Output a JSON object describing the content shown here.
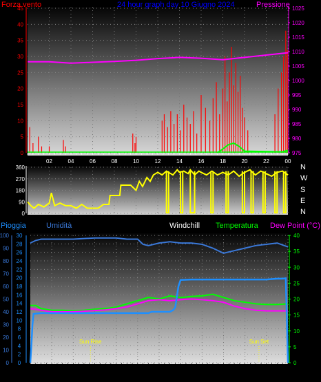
{
  "chart_data": [
    {
      "type": "bar",
      "title": "24 hour graph day 10 Giugno 2024",
      "left_label": "Forza vento",
      "right_label": "Pressione",
      "ylim_left": [
        0,
        45
      ],
      "ylim_right": [
        975,
        1025
      ],
      "yticks_left": [
        "0",
        "5",
        "10",
        "15",
        "20",
        "25",
        "30",
        "35",
        "40",
        "45"
      ],
      "yticks_right": [
        "975",
        "980",
        "985",
        "990",
        "995",
        "1000",
        "1005",
        "1010",
        "1015",
        "1020",
        "1025"
      ],
      "xticks": [
        "02",
        "04",
        "06",
        "08",
        "10",
        "12",
        "14",
        "16",
        "18",
        "20",
        "22",
        "00"
      ],
      "colors": {
        "wind": "#ff0000",
        "pressure": "#ff00ff",
        "gust": "#00ff00",
        "title": "#0000ff"
      },
      "series": [
        {
          "key": "pressure",
          "x": [
            0,
            2,
            4,
            6,
            8,
            10,
            12,
            14,
            16,
            18,
            20,
            22,
            24
          ],
          "values": [
            1006.5,
            1006.5,
            1006,
            1006.3,
            1006.6,
            1007,
            1007.6,
            1008,
            1007.7,
            1007.2,
            1008,
            1008.8,
            1009.6
          ]
        },
        {
          "key": "gust",
          "x": [
            17.5,
            18,
            18.5,
            19,
            19.5,
            20,
            23.5,
            24
          ],
          "values": [
            0,
            1.2,
            2.5,
            3,
            2,
            0.5,
            0.3,
            0.8
          ]
        }
      ],
      "wind_bars": {
        "x": [
          0.2,
          0.5,
          1,
          1.3,
          2,
          3.3,
          3.5,
          9.7,
          9.9,
          10,
          12.4,
          12.6,
          12.9,
          13.2,
          13.5,
          13.8,
          14.1,
          14.4,
          14.7,
          15,
          15.3,
          15.6,
          16,
          16.4,
          16.8,
          17.1,
          17.4,
          17.7,
          18,
          18.2,
          18.4,
          18.6,
          18.8,
          19,
          19.2,
          19.4,
          19.6,
          19.8,
          20,
          20.3,
          22.8,
          23.1,
          23.4,
          23.6,
          23.8,
          23.95
        ],
        "values": [
          8,
          3,
          5,
          2,
          2,
          4,
          2,
          6,
          3,
          5,
          10,
          12,
          8,
          13,
          9,
          12,
          7,
          15,
          11,
          9,
          13,
          6,
          18,
          14,
          10,
          17,
          22,
          12,
          20,
          30,
          16,
          25,
          33,
          21,
          28,
          19,
          24,
          14,
          11,
          7,
          12,
          20,
          25,
          30,
          38,
          32
        ]
      }
    },
    {
      "type": "line",
      "title": "",
      "ylim": [
        0,
        360
      ],
      "yticks": [
        "0",
        "90",
        "180",
        "270",
        "360"
      ],
      "cardinal": [
        "N",
        "W",
        "S",
        "E",
        "N"
      ],
      "colors": {
        "direction": "#ffff00"
      },
      "series": [
        {
          "key": "direction",
          "x": [
            0,
            0.3,
            0.6,
            1,
            1.5,
            2,
            2.2,
            2.5,
            3,
            3.5,
            4,
            4.5,
            5,
            5.5,
            6,
            6.5,
            7,
            7.5,
            7.6,
            8,
            8.5,
            8.6,
            9,
            9.5,
            10,
            10.3,
            10.6,
            11,
            11.3,
            11.6,
            12,
            12.4,
            12.8,
            13,
            13.4,
            13.8,
            14,
            14.4,
            14.8,
            15,
            15.4,
            15.8,
            16,
            16.5,
            17,
            17.5,
            18,
            18.5,
            19,
            19.5,
            20,
            20.5,
            21,
            21.5,
            22,
            22.5,
            23,
            23.5,
            24
          ],
          "values": [
            90,
            60,
            40,
            70,
            50,
            80,
            160,
            60,
            80,
            60,
            60,
            40,
            70,
            40,
            40,
            40,
            70,
            70,
            140,
            140,
            140,
            220,
            220,
            220,
            180,
            250,
            210,
            280,
            250,
            300,
            320,
            300,
            330,
            320,
            300,
            340,
            320,
            330,
            310,
            340,
            300,
            330,
            320,
            300,
            330,
            300,
            320,
            300,
            330,
            290,
            320,
            340,
            300,
            330,
            310,
            290,
            320,
            330,
            300
          ]
        },
        {
          "key": "direction-spike-band",
          "values": [
            12.8,
            13.0,
            14.1,
            14.3,
            15.0,
            15.4,
            16.9,
            17.1,
            18.3,
            18.5,
            19.8,
            20.0,
            20.6,
            20.8,
            21.7,
            21.9,
            22.8,
            23.0,
            23.6,
            23.8
          ]
        }
      ]
    },
    {
      "type": "line",
      "title": "",
      "left_label": "Pioggia",
      "second_left_label": "Umidità",
      "labels_top": [
        "Windchill",
        "Temperatura",
        "Dew Point (°C)"
      ],
      "ylim_humidity": [
        0,
        100
      ],
      "ylim_rain": [
        0,
        30
      ],
      "ylim_temp": [
        0,
        40
      ],
      "yticks_humidity": [
        "0",
        "10",
        "20",
        "30",
        "40",
        "50",
        "60",
        "70",
        "80",
        "90",
        "100"
      ],
      "yticks_rain": [
        "0",
        "2",
        "4",
        "6",
        "8",
        "10",
        "12",
        "14",
        "16",
        "18",
        "20",
        "22",
        "24",
        "26",
        "28",
        "30"
      ],
      "yticks_temp": [
        "0",
        "5",
        "10",
        "15",
        "20",
        "25",
        "30",
        "35",
        "40"
      ],
      "xticks": [
        "02",
        "04",
        "06",
        "08",
        "10",
        "12",
        "14",
        "16",
        "18",
        "20",
        "22",
        "00"
      ],
      "sun_rise_label": "Sun Rise",
      "sun_set_label": "Sun Set",
      "sun_rise_x": 5.6,
      "sun_set_x": 21.3,
      "colors": {
        "rain": "#1e8fff",
        "humidity": "#3a78d8",
        "windchill": "#ffffff",
        "temperature": "#00ff00",
        "dewpoint": "#ff00ff"
      },
      "series": [
        {
          "key": "humidity",
          "x": [
            0,
            0.5,
            1,
            2,
            4,
            6,
            8,
            9,
            10,
            10.5,
            11,
            12,
            13,
            14,
            15,
            16,
            17,
            18,
            18.5,
            19,
            20,
            21,
            22,
            23,
            24
          ],
          "values": [
            94,
            96,
            97,
            97,
            97,
            98,
            98,
            97,
            97,
            93,
            92,
            94,
            95,
            94,
            94,
            93,
            90,
            86,
            87,
            88,
            90,
            92,
            93,
            94,
            91
          ]
        },
        {
          "key": "temperature",
          "x": [
            0,
            0.5,
            1,
            2,
            3,
            4,
            5,
            6,
            7,
            8,
            9,
            10,
            11,
            12,
            13,
            14,
            15,
            16,
            17,
            18,
            19,
            20,
            21,
            22,
            23,
            24
          ],
          "values": [
            18,
            18,
            17,
            16.5,
            16.5,
            16.3,
            16.5,
            16.8,
            17,
            17.5,
            18.5,
            19.5,
            20.5,
            20,
            21,
            20.5,
            20.8,
            21,
            21.5,
            20.5,
            19.5,
            19,
            18.5,
            18.3,
            18.3,
            18.5
          ]
        },
        {
          "key": "dewpoint",
          "x": [
            0,
            1,
            2,
            3,
            4,
            5,
            6,
            7,
            8,
            9,
            10,
            11,
            12,
            13,
            14,
            15,
            16,
            17,
            18,
            19,
            20,
            21,
            22,
            23,
            24
          ],
          "values": [
            17,
            16.5,
            16,
            16,
            16,
            16.2,
            16.4,
            16.6,
            17,
            17.5,
            18.5,
            19.5,
            19.8,
            19.5,
            19.8,
            20,
            19.8,
            19.5,
            19,
            17.8,
            17,
            16.5,
            16.3,
            16.3,
            16.3
          ]
        },
        {
          "key": "rain",
          "x": [
            0,
            0.1,
            0.2,
            0.3,
            0.6,
            1,
            2,
            4,
            6,
            8,
            10,
            11,
            11.3,
            12,
            13,
            13.3,
            13.5,
            13.8,
            14,
            15,
            16,
            18,
            20,
            22,
            23,
            23.5,
            23.8,
            24
          ],
          "values": [
            0,
            4,
            9,
            11.5,
            11.6,
            11.7,
            11.7,
            11.7,
            11.7,
            11.7,
            11.7,
            11.7,
            12,
            12,
            12,
            12.4,
            13,
            18,
            19.5,
            19.6,
            19.6,
            19.6,
            19.6,
            19.6,
            19.8,
            19.8,
            19.9,
            0
          ]
        }
      ]
    }
  ]
}
